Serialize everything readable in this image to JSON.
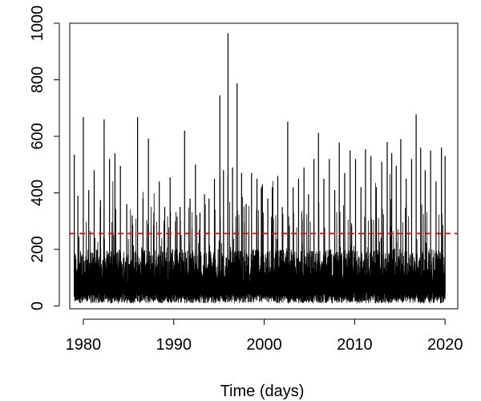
{
  "chart_data": {
    "type": "line",
    "title": "",
    "xlabel": "Time (days)",
    "ylabel": "",
    "xlim": [
      1978.5,
      2021.4
    ],
    "ylim": [
      -10,
      1000
    ],
    "x_ticks": [
      1980,
      1990,
      2000,
      2010,
      2020
    ],
    "x_tick_labels": [
      "1980",
      "1990",
      "2000",
      "2010",
      "2020"
    ],
    "y_ticks": [
      0,
      200,
      400,
      600,
      800,
      1000
    ],
    "y_tick_labels": [
      "0",
      "200",
      "400",
      "600",
      "800",
      "1000"
    ],
    "grid": false,
    "series": [
      {
        "color": "#000000",
        "x_range": [
          1979,
          2020
        ],
        "baseline_band": [
          10,
          200
        ],
        "peaks": [
          [
            1979.0,
            535
          ],
          [
            1979.4,
            390
          ],
          [
            1980.0,
            668
          ],
          [
            1980.6,
            410
          ],
          [
            1981.2,
            480
          ],
          [
            1981.9,
            375
          ],
          [
            1982.3,
            660
          ],
          [
            1982.9,
            520
          ],
          [
            1983.5,
            540
          ],
          [
            1984.1,
            495
          ],
          [
            1984.8,
            360
          ],
          [
            1985.4,
            320
          ],
          [
            1986.0,
            668
          ],
          [
            1986.6,
            380
          ],
          [
            1987.2,
            592
          ],
          [
            1987.8,
            330
          ],
          [
            1988.4,
            440
          ],
          [
            1989.0,
            350
          ],
          [
            1989.6,
            455
          ],
          [
            1990.2,
            300
          ],
          [
            1990.7,
            350
          ],
          [
            1991.2,
            620
          ],
          [
            1991.8,
            380
          ],
          [
            1992.4,
            500
          ],
          [
            1992.9,
            330
          ],
          [
            1993.4,
            395
          ],
          [
            1993.9,
            380
          ],
          [
            1994.5,
            450
          ],
          [
            1995.1,
            745
          ],
          [
            1995.5,
            480
          ],
          [
            1996.0,
            965
          ],
          [
            1996.5,
            490
          ],
          [
            1997.0,
            788
          ],
          [
            1997.5,
            470
          ],
          [
            1998.0,
            360
          ],
          [
            1998.6,
            470
          ],
          [
            1999.2,
            450
          ],
          [
            1999.8,
            430
          ],
          [
            2000.4,
            380
          ],
          [
            2000.9,
            420
          ],
          [
            2001.5,
            460
          ],
          [
            2002.0,
            350
          ],
          [
            2002.6,
            652
          ],
          [
            2003.2,
            420
          ],
          [
            2003.8,
            450
          ],
          [
            2004.4,
            490
          ],
          [
            2004.9,
            395
          ],
          [
            2005.5,
            520
          ],
          [
            2006.0,
            612
          ],
          [
            2006.6,
            450
          ],
          [
            2007.2,
            520
          ],
          [
            2007.8,
            410
          ],
          [
            2008.3,
            578
          ],
          [
            2008.9,
            470
          ],
          [
            2009.5,
            550
          ],
          [
            2010.1,
            520
          ],
          [
            2010.7,
            420
          ],
          [
            2011.2,
            555
          ],
          [
            2011.8,
            530
          ],
          [
            2012.4,
            420
          ],
          [
            2013.0,
            510
          ],
          [
            2013.6,
            580
          ],
          [
            2014.1,
            540
          ],
          [
            2014.6,
            495
          ],
          [
            2015.1,
            590
          ],
          [
            2015.7,
            450
          ],
          [
            2016.3,
            520
          ],
          [
            2016.8,
            678
          ],
          [
            2017.3,
            560
          ],
          [
            2017.8,
            480
          ],
          [
            2018.4,
            550
          ],
          [
            2019.0,
            440
          ],
          [
            2019.6,
            560
          ],
          [
            2020.0,
            530
          ]
        ]
      }
    ],
    "annotations": [
      {
        "type": "hline",
        "y": 256,
        "color": "#ff0000",
        "linestyle": "dashed"
      }
    ]
  }
}
